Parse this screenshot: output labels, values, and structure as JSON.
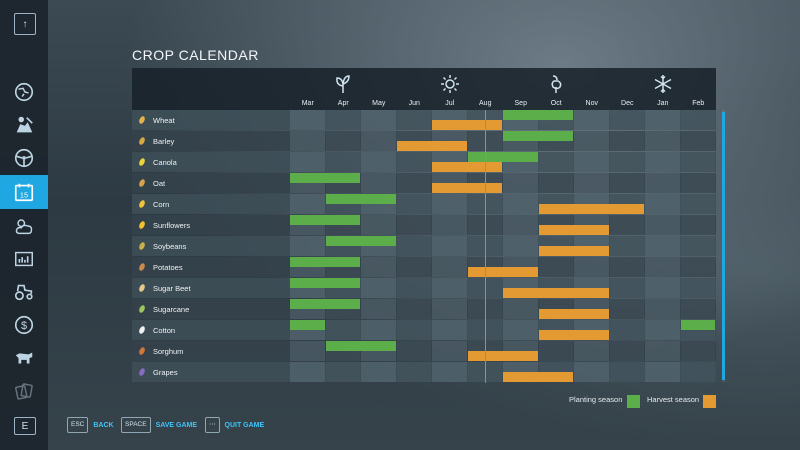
{
  "title": "CROP CALENDAR",
  "months": [
    "Mar",
    "Apr",
    "May",
    "Jun",
    "Jul",
    "Aug",
    "Sep",
    "Oct",
    "Nov",
    "Dec",
    "Jan",
    "Feb"
  ],
  "seasons": [
    {
      "icon": "sprout-icon",
      "month_index": 1
    },
    {
      "icon": "sun-icon",
      "month_index": 4
    },
    {
      "icon": "harvest-icon",
      "month_index": 7
    },
    {
      "icon": "snowflake-icon",
      "month_index": 10
    }
  ],
  "current_month_position": 5.5,
  "crops": [
    {
      "name": "Wheat",
      "icon": "wheat-icon",
      "planting": [
        [
          6,
          8
        ]
      ],
      "harvest": [
        [
          4,
          6
        ]
      ]
    },
    {
      "name": "Barley",
      "icon": "barley-icon",
      "planting": [
        [
          6,
          8
        ]
      ],
      "harvest": [
        [
          3,
          5
        ]
      ]
    },
    {
      "name": "Canola",
      "icon": "canola-icon",
      "planting": [
        [
          5,
          7
        ]
      ],
      "harvest": [
        [
          4,
          6
        ]
      ]
    },
    {
      "name": "Oat",
      "icon": "oat-icon",
      "planting": [
        [
          0,
          2
        ]
      ],
      "harvest": [
        [
          4,
          6
        ]
      ]
    },
    {
      "name": "Corn",
      "icon": "corn-icon",
      "planting": [
        [
          1,
          3
        ]
      ],
      "harvest": [
        [
          7,
          10
        ]
      ]
    },
    {
      "name": "Sunflowers",
      "icon": "sunflower-icon",
      "planting": [
        [
          0,
          2
        ]
      ],
      "harvest": [
        [
          7,
          9
        ]
      ]
    },
    {
      "name": "Soybeans",
      "icon": "soybean-icon",
      "planting": [
        [
          1,
          3
        ]
      ],
      "harvest": [
        [
          7,
          9
        ]
      ]
    },
    {
      "name": "Potatoes",
      "icon": "potato-icon",
      "planting": [
        [
          0,
          2
        ]
      ],
      "harvest": [
        [
          5,
          7
        ]
      ]
    },
    {
      "name": "Sugar Beet",
      "icon": "sugarbeet-icon",
      "planting": [
        [
          0,
          2
        ]
      ],
      "harvest": [
        [
          6,
          9
        ]
      ]
    },
    {
      "name": "Sugarcane",
      "icon": "sugarcane-icon",
      "planting": [
        [
          0,
          2
        ]
      ],
      "harvest": [
        [
          7,
          9
        ]
      ]
    },
    {
      "name": "Cotton",
      "icon": "cotton-icon",
      "planting": [
        [
          0,
          1
        ],
        [
          11,
          12
        ]
      ],
      "harvest": [
        [
          7,
          9
        ]
      ]
    },
    {
      "name": "Sorghum",
      "icon": "sorghum-icon",
      "planting": [
        [
          1,
          3
        ]
      ],
      "harvest": [
        [
          5,
          7
        ]
      ]
    },
    {
      "name": "Grapes",
      "icon": "grapes-icon",
      "planting": [],
      "harvest": [
        [
          6,
          8
        ]
      ]
    }
  ],
  "legend": {
    "planting_label": "Planting season",
    "harvest_label": "Harvest season"
  },
  "colors": {
    "planting": "#5cae4a",
    "harvest": "#e39a33",
    "accent": "#1ea7e0"
  },
  "footer": [
    {
      "key": "ESC",
      "label": "BACK"
    },
    {
      "key": "SPACE",
      "label": "SAVE GAME"
    },
    {
      "key": "⋯",
      "label": "QUIT GAME"
    }
  ],
  "sidebar": {
    "top_key": "↑",
    "bottom_key": "E",
    "items": [
      {
        "icon": "map-icon",
        "active": false
      },
      {
        "icon": "farmer-icon",
        "active": false
      },
      {
        "icon": "steering-wheel-icon",
        "active": false
      },
      {
        "icon": "calendar-icon",
        "active": true,
        "text": "15"
      },
      {
        "icon": "weather-icon",
        "active": false
      },
      {
        "icon": "statistics-icon",
        "active": false
      },
      {
        "icon": "tractor-icon",
        "active": false
      },
      {
        "icon": "finance-icon",
        "active": false
      },
      {
        "icon": "animals-icon",
        "active": false
      },
      {
        "icon": "contracts-icon",
        "active": false
      }
    ]
  }
}
